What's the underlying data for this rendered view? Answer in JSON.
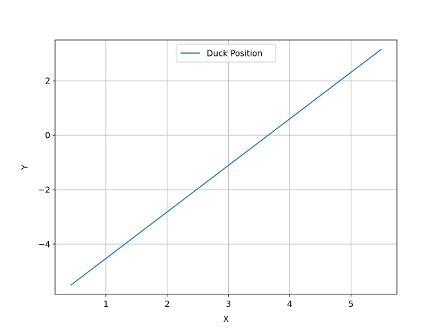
{
  "chart_data": {
    "type": "line",
    "title": "",
    "xlabel": "X",
    "ylabel": "Y",
    "xlim": [
      0.17,
      5.75
    ],
    "ylim": [
      -5.85,
      3.5
    ],
    "x_ticks": [
      1,
      2,
      3,
      4,
      5
    ],
    "x_tick_labels": [
      "1",
      "2",
      "3",
      "4",
      "5"
    ],
    "y_ticks": [
      -4,
      -2,
      0,
      2
    ],
    "y_tick_labels": [
      "−4",
      "−2",
      "0",
      "2"
    ],
    "grid": true,
    "legend": {
      "placement": "upper center"
    },
    "series": [
      {
        "name": "Duck Position",
        "color": "#1f77b4",
        "x": [
          0.43,
          5.49
        ],
        "y": [
          -5.5,
          3.15
        ]
      }
    ]
  }
}
